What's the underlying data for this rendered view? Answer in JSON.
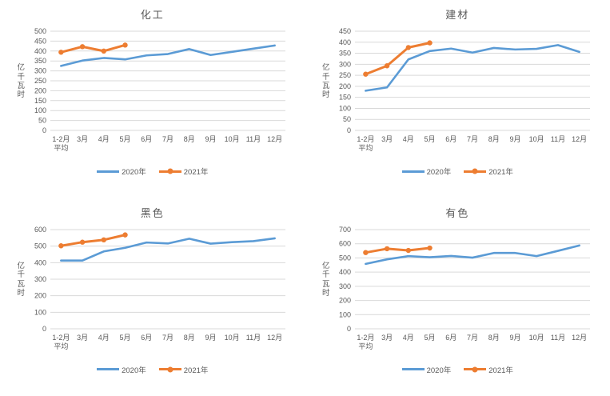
{
  "colors": {
    "grid": "#D9D9D9",
    "axis_text": "#595959",
    "title_text": "#595959",
    "series_2020": "#5B9BD5",
    "series_2021": "#ED7D31"
  },
  "chart_data": [
    {
      "type": "line",
      "title": "化工",
      "ylabel": "亿千瓦时",
      "xlabel": "",
      "categories": [
        "1-2月\n平均",
        "3月",
        "4月",
        "5月",
        "6月",
        "7月",
        "8月",
        "9月",
        "10月",
        "11月",
        "12月"
      ],
      "ylim": [
        0,
        500
      ],
      "ytick_step": 50,
      "grid": true,
      "legend_position": "bottom",
      "series": [
        {
          "name": "2020年",
          "color": "#5B9BD5",
          "marker": false,
          "values": [
            325,
            352,
            365,
            358,
            378,
            385,
            410,
            380,
            396,
            412,
            428
          ]
        },
        {
          "name": "2021年",
          "color": "#ED7D31",
          "marker": true,
          "values": [
            394,
            422,
            400,
            430
          ]
        }
      ]
    },
    {
      "type": "line",
      "title": "建材",
      "ylabel": "亿千瓦时",
      "xlabel": "",
      "categories": [
        "1-2月\n平均",
        "3月",
        "4月",
        "5月",
        "6月",
        "7月",
        "8月",
        "9月",
        "10月",
        "11月",
        "12月"
      ],
      "ylim": [
        0,
        450
      ],
      "ytick_step": 50,
      "grid": true,
      "legend_position": "bottom",
      "series": [
        {
          "name": "2020年",
          "color": "#5B9BD5",
          "marker": false,
          "values": [
            180,
            195,
            322,
            360,
            371,
            353,
            374,
            367,
            370,
            387,
            356
          ]
        },
        {
          "name": "2021年",
          "color": "#ED7D31",
          "marker": true,
          "values": [
            255,
            293,
            376,
            397
          ]
        }
      ]
    },
    {
      "type": "line",
      "title": "黑色",
      "ylabel": "亿千瓦时",
      "xlabel": "",
      "categories": [
        "1-2月\n平均",
        "3月",
        "4月",
        "5月",
        "6月",
        "7月",
        "8月",
        "9月",
        "10月",
        "11月",
        "12月"
      ],
      "ylim": [
        0,
        600
      ],
      "ytick_step": 100,
      "grid": true,
      "legend_position": "bottom",
      "series": [
        {
          "name": "2020年",
          "color": "#5B9BD5",
          "marker": false,
          "values": [
            413,
            413,
            468,
            490,
            522,
            516,
            545,
            515,
            524,
            530,
            547
          ]
        },
        {
          "name": "2021年",
          "color": "#ED7D31",
          "marker": true,
          "values": [
            502,
            524,
            538,
            568
          ]
        }
      ]
    },
    {
      "type": "line",
      "title": "有色",
      "ylabel": "亿千瓦时",
      "xlabel": "",
      "categories": [
        "1-2月\n平均",
        "3月",
        "4月",
        "5月",
        "6月",
        "7月",
        "8月",
        "9月",
        "10月",
        "11月",
        "12月"
      ],
      "ylim": [
        0,
        700
      ],
      "ytick_step": 100,
      "grid": true,
      "legend_position": "bottom",
      "series": [
        {
          "name": "2020年",
          "color": "#5B9BD5",
          "marker": false,
          "values": [
            458,
            490,
            513,
            505,
            514,
            502,
            535,
            535,
            513,
            550,
            588
          ]
        },
        {
          "name": "2021年",
          "color": "#ED7D31",
          "marker": true,
          "values": [
            538,
            565,
            553,
            570
          ]
        }
      ]
    }
  ]
}
